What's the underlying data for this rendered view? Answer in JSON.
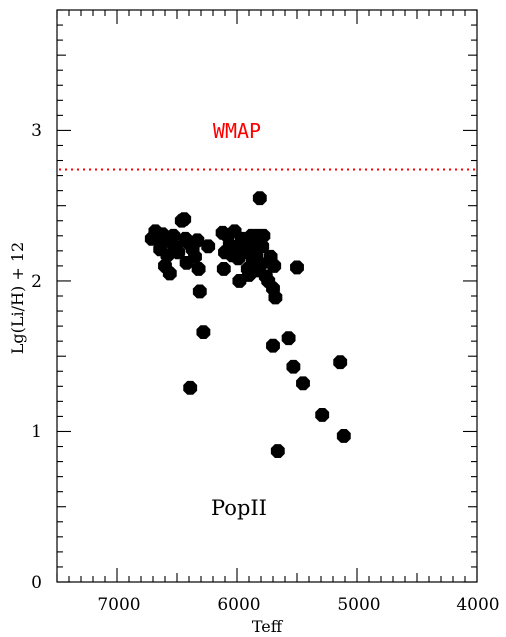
{
  "chart_data": {
    "type": "scatter",
    "xlabel": "Teff",
    "ylabel": "Lg(Li/H) + 12",
    "xlim": [
      7500,
      4000
    ],
    "ylim": [
      0,
      3.8
    ],
    "x_ticks": [
      "7000",
      "6000",
      "5000",
      "4000"
    ],
    "y_ticks": [
      "0",
      "1",
      "2",
      "3"
    ],
    "reference_line": {
      "label": "WMAP",
      "y": 2.74,
      "color": "#ff0000",
      "style": "dotted"
    },
    "annotation": "PopII",
    "marker_color": "#000000",
    "series": [
      {
        "points": [
          [
            6710,
            2.28
          ],
          [
            6680,
            2.33
          ],
          [
            6650,
            2.27
          ],
          [
            6640,
            2.21
          ],
          [
            6620,
            2.31
          ],
          [
            6600,
            2.1
          ],
          [
            6580,
            2.17
          ],
          [
            6560,
            2.05
          ],
          [
            6550,
            2.26
          ],
          [
            6530,
            2.3
          ],
          [
            6510,
            2.22
          ],
          [
            6490,
            2.19
          ],
          [
            6460,
            2.4
          ],
          [
            6440,
            2.41
          ],
          [
            6430,
            2.28
          ],
          [
            6420,
            2.12
          ],
          [
            6400,
            2.25
          ],
          [
            6390,
            1.29
          ],
          [
            6370,
            2.21
          ],
          [
            6350,
            2.16
          ],
          [
            6330,
            2.27
          ],
          [
            6320,
            2.08
          ],
          [
            6310,
            1.93
          ],
          [
            6280,
            1.66
          ],
          [
            6240,
            2.23
          ],
          [
            6120,
            2.32
          ],
          [
            6110,
            2.08
          ],
          [
            6100,
            2.19
          ],
          [
            6080,
            2.3
          ],
          [
            6060,
            2.24
          ],
          [
            6040,
            2.17
          ],
          [
            6020,
            2.33
          ],
          [
            6000,
            2.21
          ],
          [
            5990,
            2.15
          ],
          [
            5980,
            2.0
          ],
          [
            5960,
            2.28
          ],
          [
            5940,
            2.19
          ],
          [
            5920,
            2.25
          ],
          [
            5910,
            2.08
          ],
          [
            5900,
            2.04
          ],
          [
            5880,
            2.3
          ],
          [
            5870,
            2.13
          ],
          [
            5860,
            2.22
          ],
          [
            5840,
            2.17
          ],
          [
            5830,
            2.3
          ],
          [
            5820,
            2.07
          ],
          [
            5810,
            2.55
          ],
          [
            5800,
            2.11
          ],
          [
            5790,
            2.23
          ],
          [
            5780,
            2.3
          ],
          [
            5760,
            2.03
          ],
          [
            5740,
            2.0
          ],
          [
            5720,
            2.16
          ],
          [
            5700,
            1.95
          ],
          [
            5690,
            2.1
          ],
          [
            5680,
            1.89
          ],
          [
            5700,
            1.57
          ],
          [
            5660,
            0.87
          ],
          [
            5570,
            1.62
          ],
          [
            5530,
            1.43
          ],
          [
            5500,
            2.09
          ],
          [
            5450,
            1.32
          ],
          [
            5290,
            1.11
          ],
          [
            5140,
            1.46
          ],
          [
            5110,
            0.97
          ]
        ]
      }
    ]
  }
}
